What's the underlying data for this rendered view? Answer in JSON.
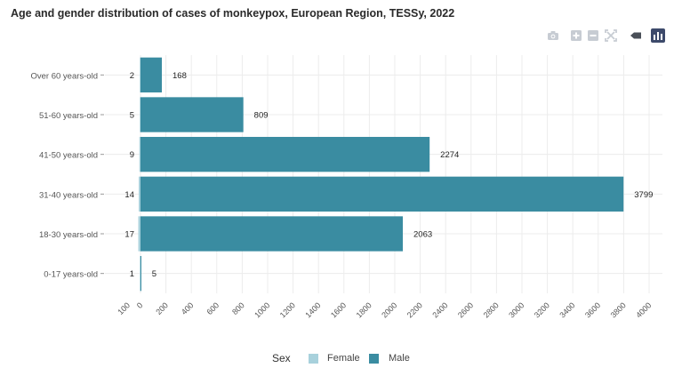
{
  "title": "Age and gender distribution of cases of monkeypox, European Region, TESSy, 2022",
  "toolbar": {
    "icons": [
      "camera-icon",
      "zoom-in-icon",
      "zoom-out-icon",
      "autoscale-icon",
      "label-icon",
      "plotly-logo-icon"
    ]
  },
  "legend": {
    "title": "Sex",
    "female_label": "Female",
    "male_label": "Male"
  },
  "colors": {
    "female": "#a8d1dc",
    "male": "#3a8ca1",
    "grid": "#ececec",
    "axis_text": "#555555"
  },
  "chart_data": {
    "type": "bar",
    "orientation": "horizontal-population-pyramid",
    "categories": [
      "Over 60 years-old",
      "51-60 years-old",
      "41-50 years-old",
      "31-40 years-old",
      "18-30 years-old",
      "0-17 years-old"
    ],
    "series": [
      {
        "name": "Female",
        "values": [
          2,
          5,
          9,
          14,
          17,
          1
        ],
        "direction": "left"
      },
      {
        "name": "Male",
        "values": [
          168,
          809,
          2274,
          3799,
          2063,
          5
        ],
        "direction": "right"
      }
    ],
    "xticks": [
      "100",
      "0",
      "200",
      "400",
      "600",
      "800",
      "1000",
      "1200",
      "1400",
      "1600",
      "1800",
      "2000",
      "2200",
      "2400",
      "2600",
      "2800",
      "3000",
      "3200",
      "3400",
      "3600",
      "3800",
      "4000"
    ],
    "xlim": [
      -100,
      4000
    ],
    "grid": true,
    "legend_position": "bottom"
  }
}
